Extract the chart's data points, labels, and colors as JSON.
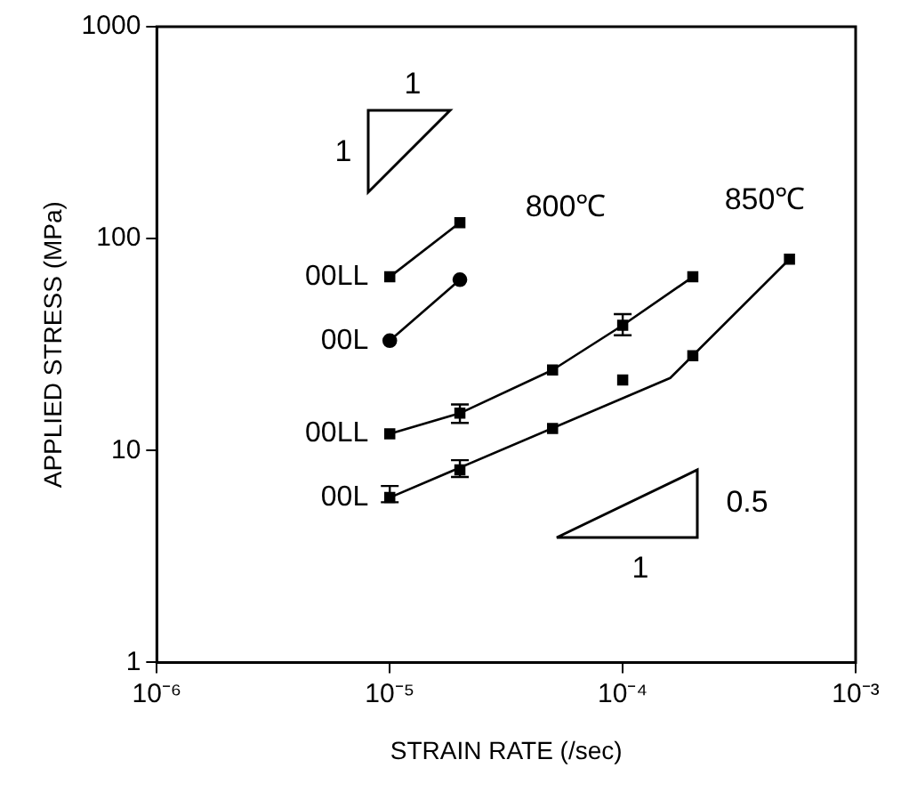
{
  "chart_data": {
    "type": "scatter",
    "xlabel": "STRAIN RATE (/sec)",
    "ylabel": "APPLIED STRESS (MPa)",
    "log": "xy",
    "grid": false,
    "legend": false,
    "xlim": [
      1e-06,
      0.001
    ],
    "xticks": [
      {
        "value": 1e-06,
        "label": "10⁻⁶"
      },
      {
        "value": 1e-05,
        "label": "10⁻⁵"
      },
      {
        "value": 0.0001,
        "label": "10⁻⁴"
      },
      {
        "value": 0.001,
        "label": "10⁻³"
      }
    ],
    "ylim": [
      1,
      1000
    ],
    "yticks": [
      1,
      10,
      100,
      1000
    ],
    "annotations": [
      "800℃",
      "850℃",
      "1",
      "1",
      "0.5",
      "1"
    ],
    "series": [
      {
        "name": "00LL",
        "type": "line",
        "marker": "square",
        "color": "#000000",
        "x": [
          1e-05,
          2e-05
        ],
        "values": [
          66,
          119
        ]
      },
      {
        "name": "00L",
        "type": "line",
        "marker": "circle",
        "color": "#000000",
        "x": [
          1e-05,
          2e-05
        ],
        "values": [
          33,
          64
        ]
      },
      {
        "name": "00LL",
        "type": "line",
        "marker": "square",
        "color": "#000000",
        "x": [
          1e-05,
          2e-05,
          5e-05,
          0.0001,
          0.0002
        ],
        "values": [
          12,
          15,
          24,
          39,
          66
        ],
        "errors": [
          null,
          [
            13.5,
            16.5
          ],
          null,
          [
            35,
            44
          ],
          null
        ]
      },
      {
        "name": "00L",
        "marker": "square",
        "color": "#000000",
        "x": [
          1e-05,
          2e-05,
          5e-05,
          0.0001,
          0.0002,
          0.00052
        ],
        "values": [
          6,
          8.1,
          12.7,
          21.5,
          28,
          80
        ],
        "errors": [
          [
            5.7,
            6.8
          ],
          [
            7.5,
            9
          ],
          null,
          null,
          null,
          null
        ]
      },
      {
        "type": "line",
        "marker": "none",
        "color": "#000000",
        "x": [
          1e-05,
          0.00016,
          0.00052
        ],
        "values": [
          6,
          22,
          80
        ]
      }
    ]
  }
}
